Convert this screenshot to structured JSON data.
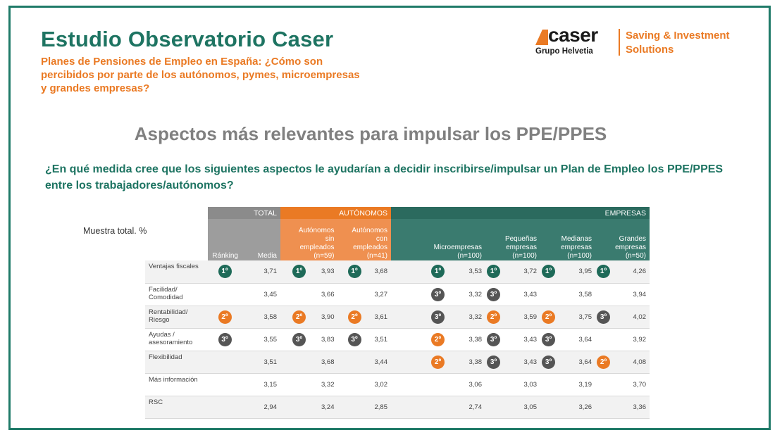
{
  "header": {
    "title": "Estudio Observatorio Caser",
    "subtitle": "Planes de Pensiones de Empleo en España: ¿Cómo son percibidos por parte de los autónomos, pymes, microempresas y grandes empresas?",
    "logo_text": "caser",
    "logo_sub": "Grupo Helvetia",
    "tagline_1": "Saving & Investment",
    "tagline_2": "Solutions"
  },
  "heading": "Aspectos más relevantes para impulsar los PPE/PPES",
  "question": "¿En qué medida cree que los siguientes aspectos le ayudarían a decidir inscribirse/impulsar un Plan de Empleo los PPE/PPES entre los trabajadores/autónomos?",
  "sample_label": "Muestra total. %",
  "table": {
    "groups": {
      "total": "TOTAL",
      "autonomos": "AUTÓNOMOS",
      "empresas": "EMPRESAS"
    },
    "columns": {
      "ranking": "Ránking",
      "media": "Media",
      "aut_sin": [
        "Autónomos",
        "sin",
        "empleados",
        "(n=59)"
      ],
      "aut_con": [
        "Autónomos",
        "con",
        "empleados",
        "(n=41)"
      ],
      "micro": [
        "Microempresas",
        "(n=100)"
      ],
      "pequenas": [
        "Pequeñas",
        "empresas",
        "(n=100)"
      ],
      "medianas": [
        "Medianas",
        "empresas",
        "(n=100)"
      ],
      "grandes": [
        "Grandes",
        "empresas",
        "(n=50)"
      ]
    },
    "rows": [
      {
        "label": [
          "Ventajas fiscales"
        ],
        "rank": "1º",
        "media": "3,71",
        "cells": [
          [
            "1º",
            "3,93"
          ],
          [
            "1º",
            "3,68"
          ],
          [
            "1º",
            "3,53"
          ],
          [
            "1º",
            "3,72"
          ],
          [
            "1º",
            "3,95"
          ],
          [
            "1º",
            "4,26"
          ]
        ]
      },
      {
        "label": [
          "Facilidad/",
          "Comodidad"
        ],
        "rank": "",
        "media": "3,45",
        "cells": [
          [
            "",
            "3,66"
          ],
          [
            "",
            "3,27"
          ],
          [
            "3º",
            "3,32"
          ],
          [
            "3º",
            "3,43"
          ],
          [
            "",
            "3,58"
          ],
          [
            "",
            "3,94"
          ]
        ]
      },
      {
        "label": [
          "Rentabilidad/",
          "Riesgo"
        ],
        "rank": "2º",
        "media": "3,58",
        "cells": [
          [
            "2º",
            "3,90"
          ],
          [
            "2º",
            "3,61"
          ],
          [
            "3º",
            "3,32"
          ],
          [
            "2º",
            "3,59"
          ],
          [
            "2º",
            "3,75"
          ],
          [
            "3º",
            "4,02"
          ]
        ]
      },
      {
        "label": [
          "Ayudas /",
          "asesoramiento"
        ],
        "rank": "3º",
        "media": "3,55",
        "cells": [
          [
            "3º",
            "3,83"
          ],
          [
            "3º",
            "3,51"
          ],
          [
            "2º",
            "3,38"
          ],
          [
            "3º",
            "3,43"
          ],
          [
            "3º",
            "3,64"
          ],
          [
            "",
            "3,92"
          ]
        ]
      },
      {
        "label": [
          "Flexibilidad"
        ],
        "rank": "",
        "media": "3,51",
        "cells": [
          [
            "",
            "3,68"
          ],
          [
            "",
            "3,44"
          ],
          [
            "2º",
            "3,38"
          ],
          [
            "3º",
            "3,43"
          ],
          [
            "3º",
            "3,64"
          ],
          [
            "2º",
            "4,08"
          ]
        ]
      },
      {
        "label": [
          "Más información"
        ],
        "rank": "",
        "media": "3,15",
        "cells": [
          [
            "",
            "3,32"
          ],
          [
            "",
            "3,02"
          ],
          [
            "",
            "3,06"
          ],
          [
            "",
            "3,03"
          ],
          [
            "",
            "3,19"
          ],
          [
            "",
            "3,70"
          ]
        ]
      },
      {
        "label": [
          "RSC"
        ],
        "rank": "",
        "media": "2,94",
        "cells": [
          [
            "",
            "3,24"
          ],
          [
            "",
            "2,85"
          ],
          [
            "",
            "2,74"
          ],
          [
            "",
            "3,05"
          ],
          [
            "",
            "3,26"
          ],
          [
            "",
            "3,36"
          ]
        ]
      }
    ]
  },
  "colors": {
    "green": "#1e7462",
    "orange": "#ea7a24",
    "gray": "#8b8b8b",
    "dark": "#555555"
  }
}
